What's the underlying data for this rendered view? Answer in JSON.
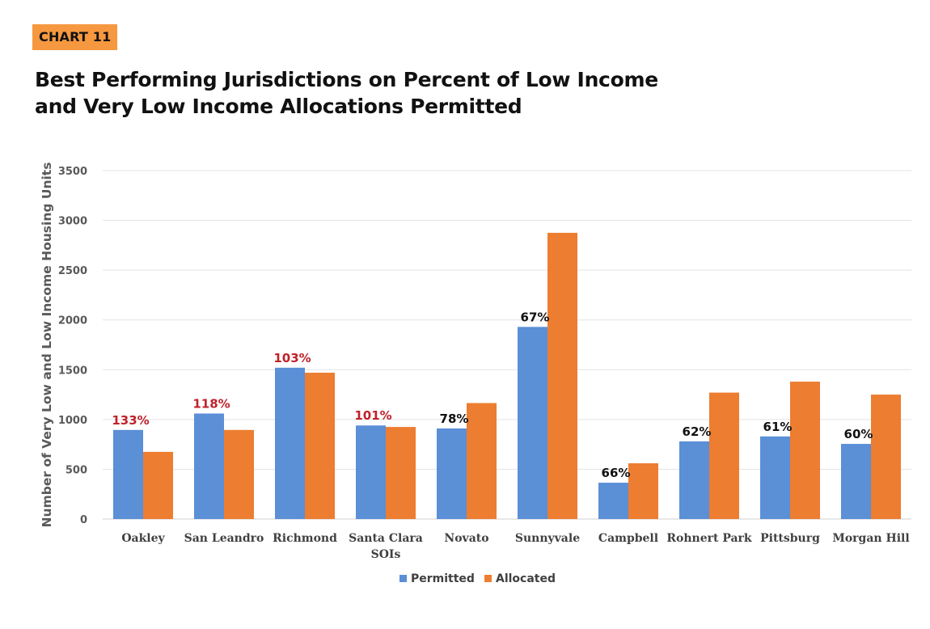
{
  "badge": "CHART 11",
  "title_lines": [
    "Best Performing Jurisdictions on Percent of Low Income",
    "and Very Low Income Allocations Permitted"
  ],
  "colors": {
    "permitted": "#5b8fd6",
    "allocated": "#ed7d31",
    "over_100": "#c0212b",
    "under_100": "#111111",
    "badge": "#f6983f"
  },
  "chart_data": {
    "type": "bar",
    "ylabel": "Number of Very Low and Low Income Housing Units",
    "xlabel": "",
    "ylim": [
      0,
      3500
    ],
    "yticks": [
      0,
      500,
      1000,
      1500,
      2000,
      2500,
      3000,
      3500
    ],
    "grid": true,
    "legend_position": "bottom",
    "categories": [
      [
        "Oakley"
      ],
      [
        "San Leandro"
      ],
      [
        "Richmond"
      ],
      [
        "Santa Clara",
        "SOIs"
      ],
      [
        "Novato"
      ],
      [
        "Sunnyvale"
      ],
      [
        "Campbell"
      ],
      [
        "Rohnert Park"
      ],
      [
        "Pittsburg"
      ],
      [
        "Morgan Hill"
      ]
    ],
    "series": [
      {
        "name": "Permitted",
        "values": [
          895,
          1060,
          1520,
          940,
          910,
          1930,
          365,
          780,
          830,
          755
        ]
      },
      {
        "name": "Allocated",
        "values": [
          675,
          895,
          1470,
          925,
          1165,
          2875,
          560,
          1270,
          1380,
          1250
        ]
      }
    ],
    "annotations": [
      "133%",
      "118%",
      "103%",
      "101%",
      "78%",
      "67%",
      "66%",
      "62%",
      "61%",
      "60%"
    ]
  }
}
